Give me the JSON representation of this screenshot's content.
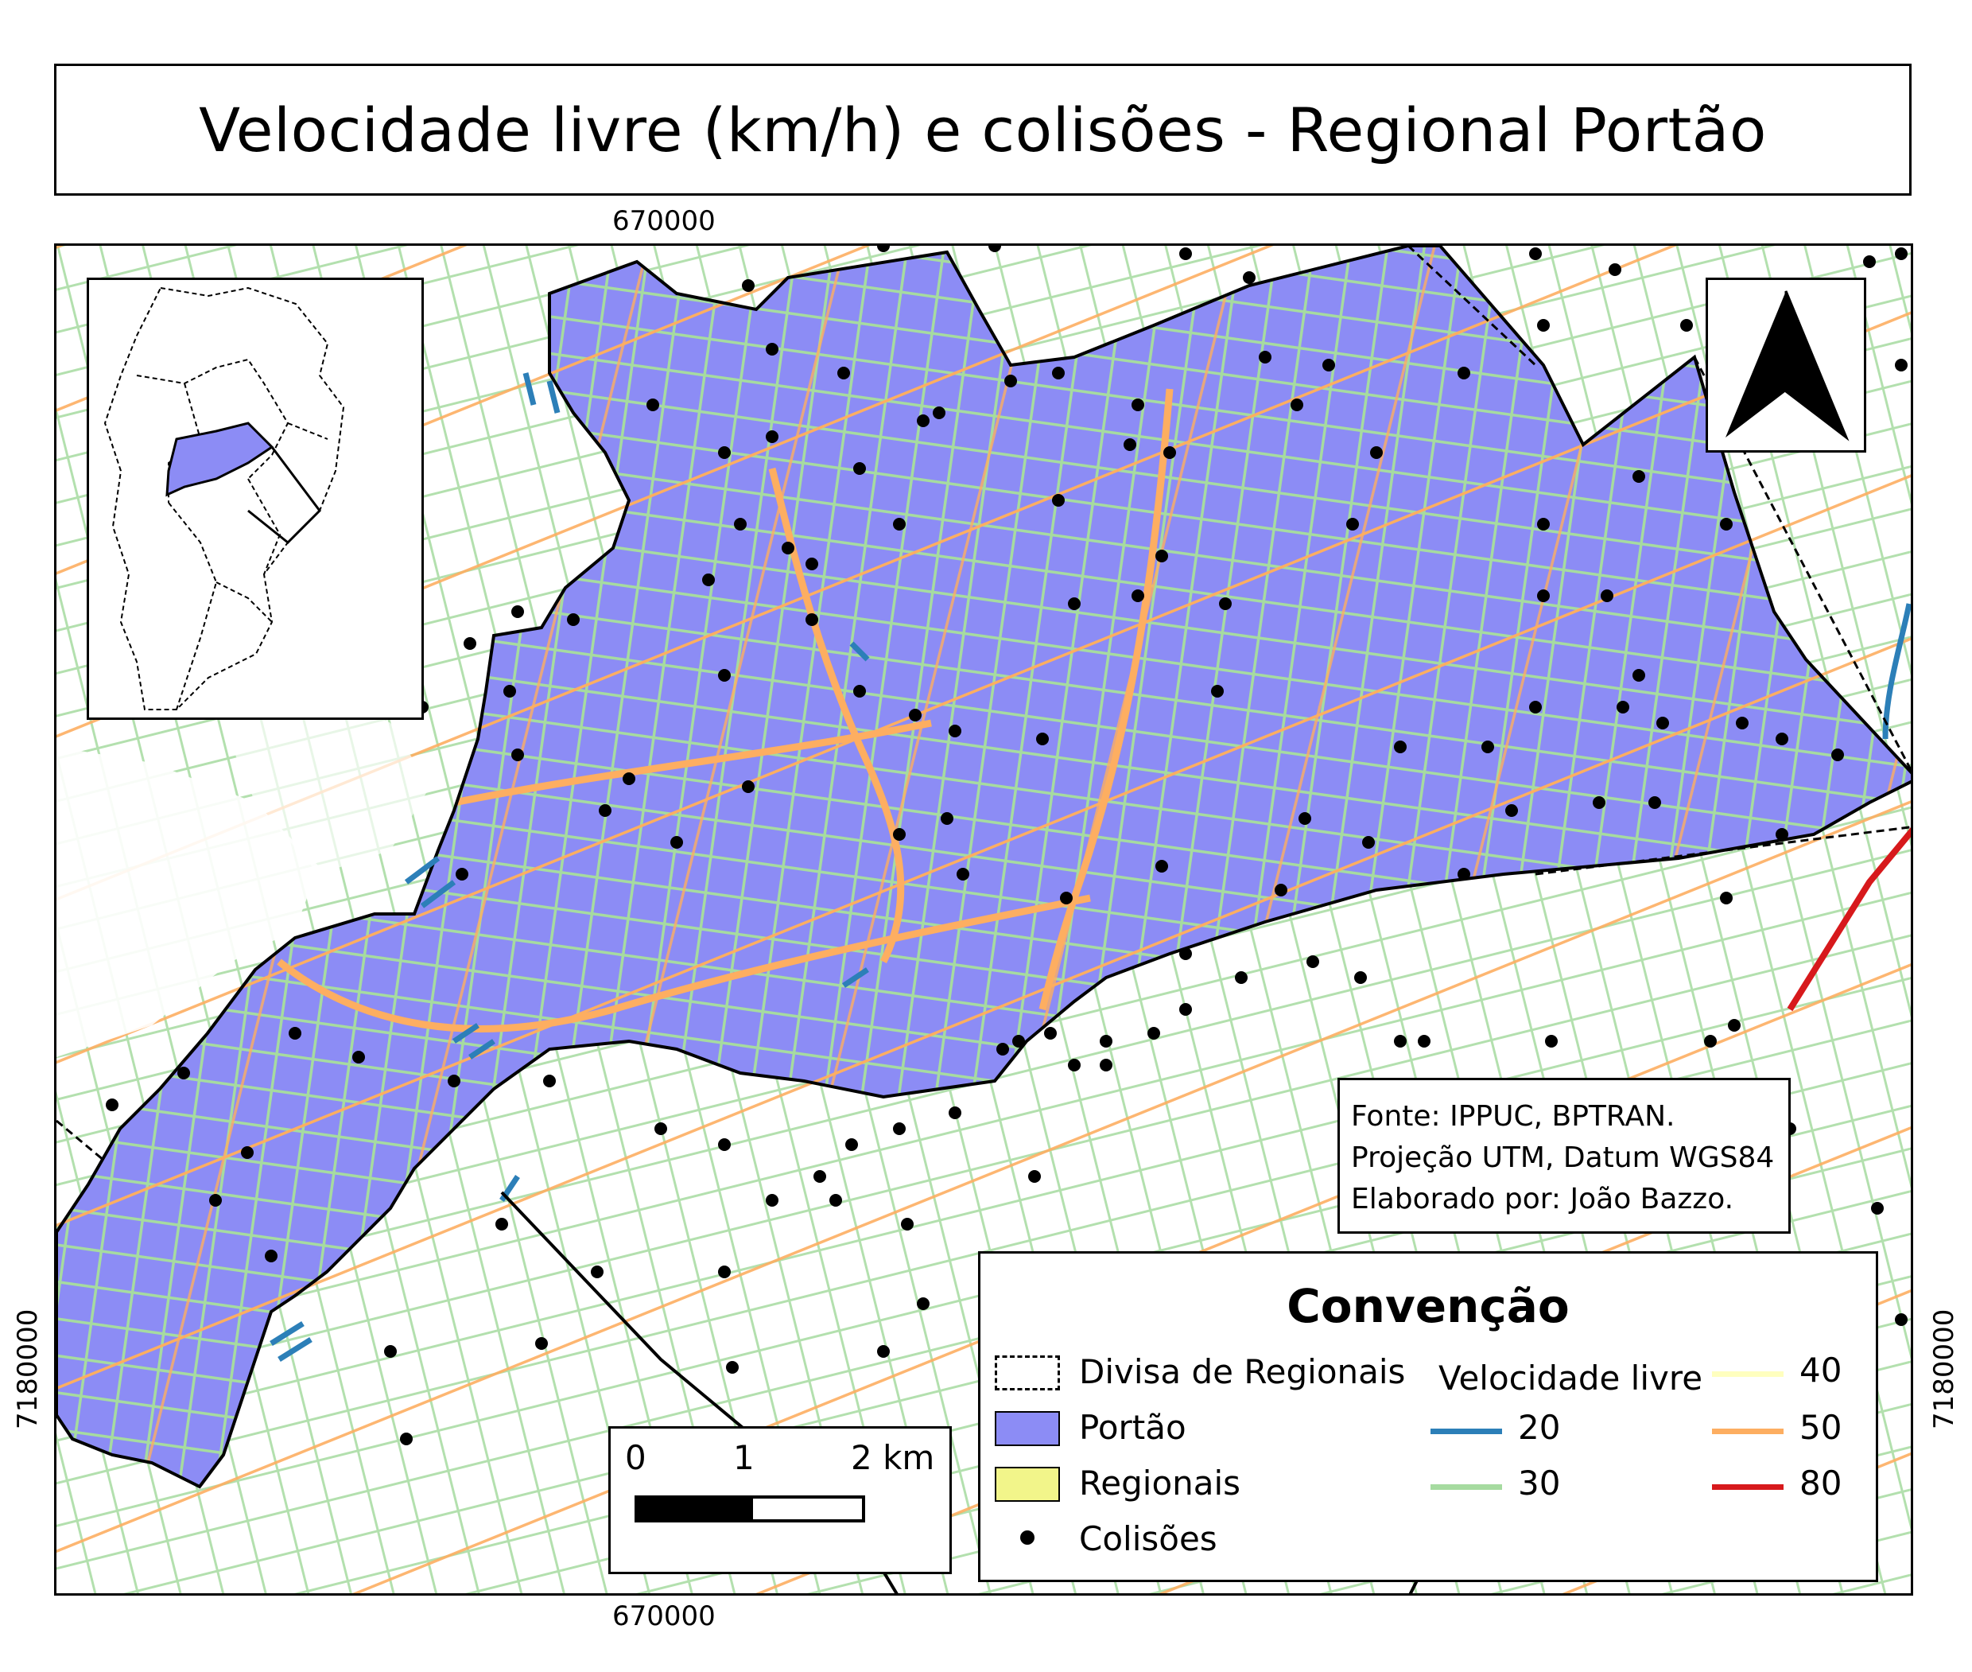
{
  "title": "Velocidade livre (km/h) e colisões - Regional Portão",
  "coords": {
    "top": "670000",
    "bottom": "670000",
    "left": "7180000",
    "right": "7180000"
  },
  "source": {
    "line1": "Fonte: IPPUC, BPTRAN.",
    "line2": "Projeção UTM, Datum WGS84",
    "line3": "Elaborado por: João Bazzo."
  },
  "legend": {
    "title": "Convenção",
    "divisa": "Divisa de Regionais",
    "portao": "Portão",
    "regionais": "Regionais",
    "colisoes": "Colisões",
    "speed_title": "Velocidade livre",
    "speeds": [
      {
        "label": "20",
        "color": "#2c7fb8"
      },
      {
        "label": "30",
        "color": "#a6dba0"
      },
      {
        "label": "40",
        "color": "#ffffbf"
      },
      {
        "label": "50",
        "color": "#fdae61"
      },
      {
        "label": "80",
        "color": "#d7191c"
      }
    ],
    "portao_color": "#8c8cf5",
    "regionais_color": "#f2f58a"
  },
  "scale": {
    "labels": [
      "0",
      "1",
      "2 km"
    ]
  },
  "icons": {
    "north_arrow": "north-arrow-icon",
    "collision": "collision-dot-icon"
  }
}
